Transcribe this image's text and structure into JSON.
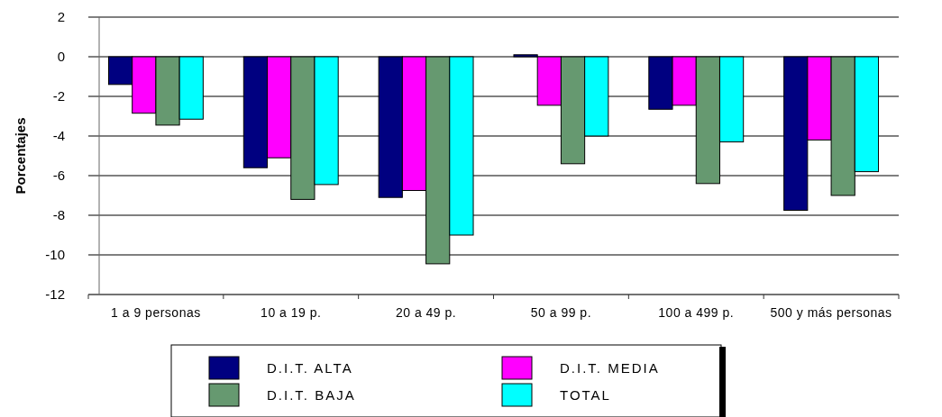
{
  "chart_data": {
    "type": "bar",
    "ylabel": "Porcentajes",
    "categories": [
      "1 a 9 personas",
      "10 a 19 p.",
      "20 a 49 p.",
      "50 a 99 p.",
      "100 a 499 p.",
      "500 y más personas"
    ],
    "series": [
      {
        "name": "D.I.T. ALTA",
        "color": "#000080",
        "values": [
          -1.4,
          -5.6,
          -7.1,
          0.1,
          -2.65,
          -7.75
        ]
      },
      {
        "name": "D.I.T. MEDIA",
        "color": "#ff00ff",
        "values": [
          -2.85,
          -5.1,
          -6.75,
          -2.45,
          -2.45,
          -4.2
        ]
      },
      {
        "name": "D.I.T. BAJA",
        "color": "#669970",
        "values": [
          -3.45,
          -7.2,
          -10.45,
          -5.4,
          -6.4,
          -7.0
        ]
      },
      {
        "name": "TOTAL",
        "color": "#00ffff",
        "values": [
          -3.15,
          -6.45,
          -9.0,
          -4.0,
          -4.3,
          -5.8
        ]
      }
    ],
    "ylim": [
      -12,
      2
    ],
    "yticks": [
      -12,
      -10,
      -8,
      -6,
      -4,
      -2,
      0,
      2
    ],
    "grid": "y",
    "legend": "bottom"
  }
}
